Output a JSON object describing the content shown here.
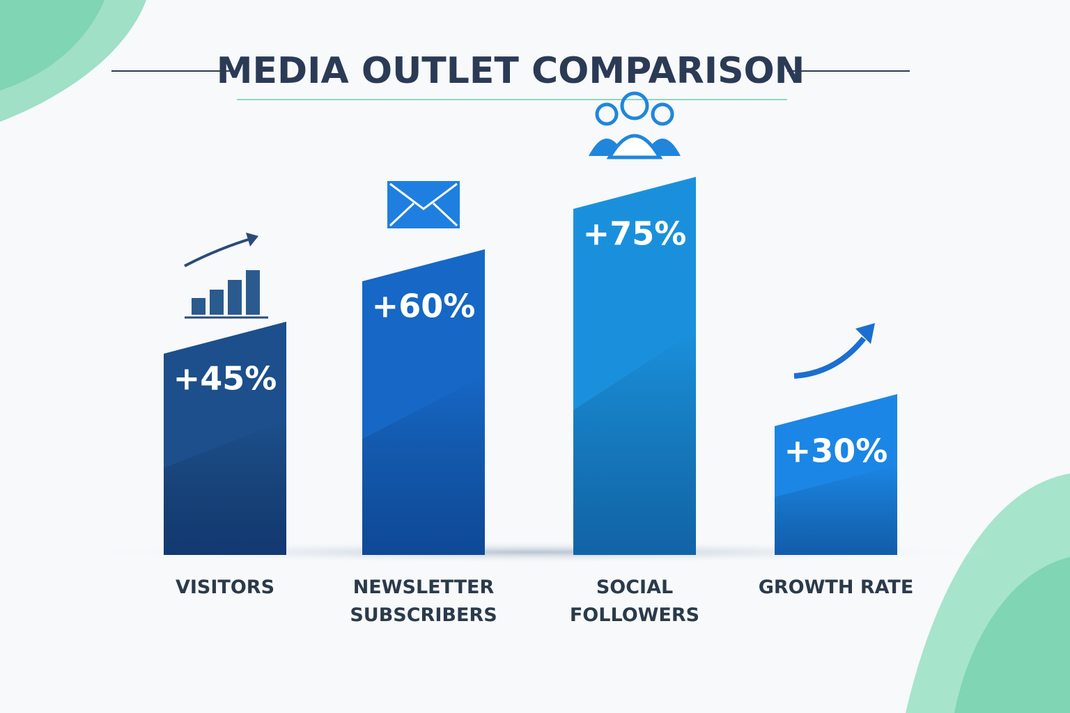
{
  "chart_data": {
    "type": "bar",
    "title": "MEDIA OUTLET COMPARISON",
    "categories": [
      "VISITORS",
      "NEWSLETTER SUBSCRIBERS",
      "SOCIAL FOLLOWERS",
      "GROWTH RATE"
    ],
    "values": [
      45,
      60,
      75,
      30
    ],
    "value_labels": [
      "+45%",
      "+60%",
      "+75%",
      "+30%"
    ],
    "colors": [
      "#1c4f8c",
      "#1667c6",
      "#1a90dd",
      "#1b86e6"
    ]
  }
}
